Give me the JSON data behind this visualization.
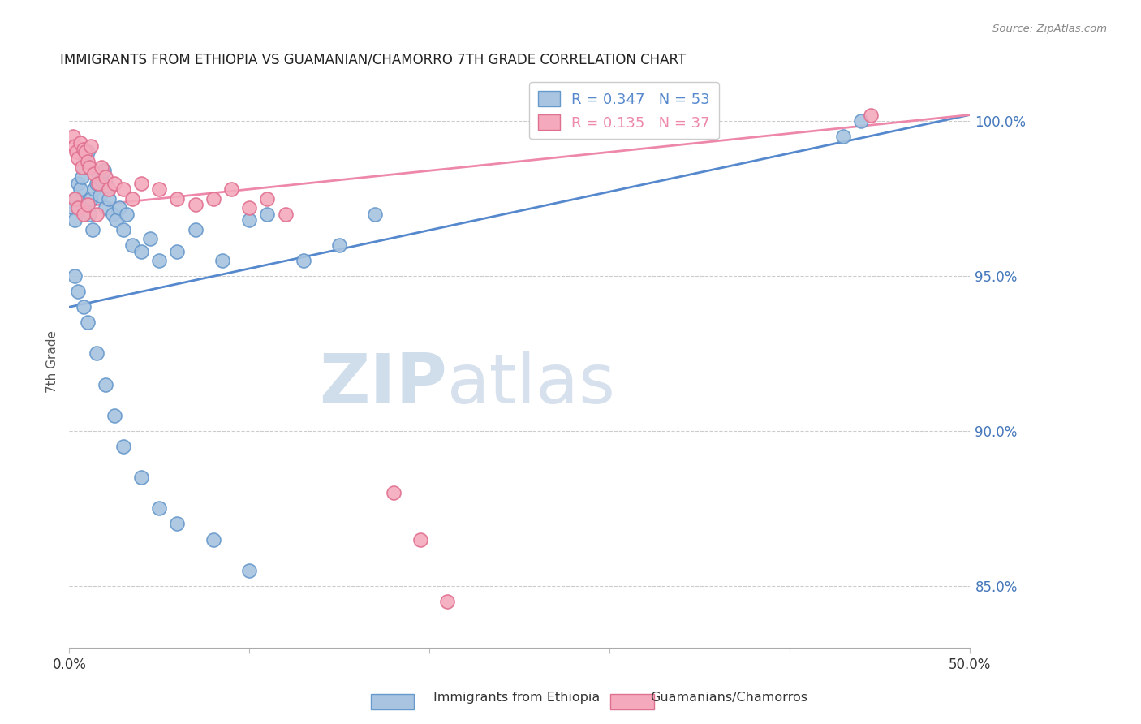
{
  "title": "IMMIGRANTS FROM ETHIOPIA VS GUAMANIAN/CHAMORRO 7TH GRADE CORRELATION CHART",
  "source": "Source: ZipAtlas.com",
  "ylabel": "7th Grade",
  "xlim": [
    0.0,
    50.0
  ],
  "ylim": [
    83.0,
    101.5
  ],
  "yticks": [
    85.0,
    90.0,
    95.0,
    100.0
  ],
  "ytick_labels": [
    "85.0%",
    "90.0%",
    "95.0%",
    "100.0%"
  ],
  "xticks": [
    0.0,
    10.0,
    20.0,
    30.0,
    40.0,
    50.0
  ],
  "xtick_labels": [
    "0.0%",
    "",
    "",
    "",
    "",
    "50.0%"
  ],
  "blue_R": 0.347,
  "blue_N": 53,
  "pink_R": 0.135,
  "pink_N": 37,
  "blue_color": "#A8C4E0",
  "pink_color": "#F4AABC",
  "blue_edge_color": "#6699CC",
  "pink_edge_color": "#E07090",
  "blue_line_color": "#5588CC",
  "pink_line_color": "#EE88AA",
  "legend_label_blue": "Immigrants from Ethiopia",
  "legend_label_pink": "Guamanians/Chamorros",
  "watermark_zip": "ZIP",
  "watermark_atlas": "atlas",
  "blue_trend_x0": 0.0,
  "blue_trend_y0": 94.0,
  "blue_trend_x1": 50.0,
  "blue_trend_y1": 100.2,
  "pink_trend_x0": 0.0,
  "pink_trend_y0": 97.2,
  "pink_trend_x1": 50.0,
  "pink_trend_y1": 100.2,
  "blue_scatter_x": [
    0.2,
    0.3,
    0.4,
    0.5,
    0.6,
    0.7,
    0.8,
    0.9,
    1.0,
    1.1,
    1.2,
    1.3,
    1.4,
    1.5,
    1.6,
    1.7,
    1.8,
    1.9,
    2.0,
    2.1,
    2.2,
    2.4,
    2.6,
    2.8,
    3.0,
    3.2,
    3.5,
    4.0,
    4.5,
    5.0,
    6.0,
    7.0,
    8.5,
    10.0,
    11.0,
    13.0,
    15.0,
    17.0,
    0.3,
    0.5,
    0.8,
    1.0,
    1.5,
    2.0,
    2.5,
    3.0,
    4.0,
    5.0,
    6.0,
    8.0,
    10.0,
    43.0,
    44.0
  ],
  "blue_scatter_y": [
    97.2,
    96.8,
    97.5,
    98.0,
    97.8,
    98.2,
    98.5,
    98.8,
    99.0,
    97.0,
    97.5,
    96.5,
    97.8,
    98.0,
    98.3,
    97.6,
    98.1,
    98.4,
    97.2,
    97.9,
    97.5,
    97.0,
    96.8,
    97.2,
    96.5,
    97.0,
    96.0,
    95.8,
    96.2,
    95.5,
    95.8,
    96.5,
    95.5,
    96.8,
    97.0,
    95.5,
    96.0,
    97.0,
    95.0,
    94.5,
    94.0,
    93.5,
    92.5,
    91.5,
    90.5,
    89.5,
    88.5,
    87.5,
    87.0,
    86.5,
    85.5,
    99.5,
    100.0
  ],
  "pink_scatter_x": [
    0.2,
    0.3,
    0.4,
    0.5,
    0.6,
    0.7,
    0.8,
    0.9,
    1.0,
    1.1,
    1.2,
    1.4,
    1.6,
    1.8,
    2.0,
    2.2,
    2.5,
    3.0,
    3.5,
    4.0,
    5.0,
    6.0,
    7.0,
    8.0,
    9.0,
    10.0,
    11.0,
    12.0,
    0.3,
    0.5,
    0.8,
    1.0,
    1.5,
    18.0,
    19.5,
    21.0,
    44.5
  ],
  "pink_scatter_y": [
    99.5,
    99.2,
    99.0,
    98.8,
    99.3,
    98.5,
    99.1,
    99.0,
    98.7,
    98.5,
    99.2,
    98.3,
    98.0,
    98.5,
    98.2,
    97.8,
    98.0,
    97.8,
    97.5,
    98.0,
    97.8,
    97.5,
    97.3,
    97.5,
    97.8,
    97.2,
    97.5,
    97.0,
    97.5,
    97.2,
    97.0,
    97.3,
    97.0,
    88.0,
    86.5,
    84.5,
    100.2
  ]
}
